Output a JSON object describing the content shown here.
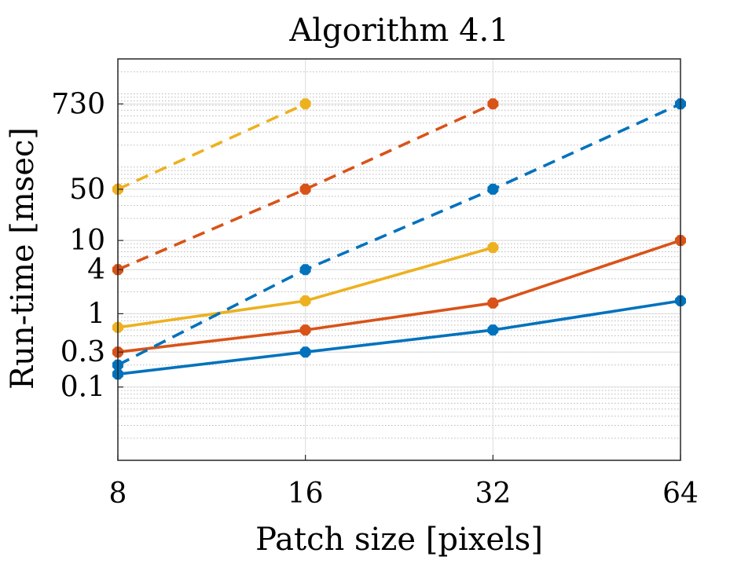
{
  "chart_data": {
    "type": "line",
    "title": "Algorithm 4.1",
    "xlabel": "Patch size [pixels]",
    "ylabel": "Run-time [msec]",
    "x": [
      8,
      16,
      32,
      64
    ],
    "x_scale": "log2",
    "y_scale": "log",
    "xlim": [
      8,
      64
    ],
    "ylim": [
      0.01,
      3000
    ],
    "xticks": [
      8,
      16,
      32,
      64
    ],
    "xtick_labels": [
      "8",
      "16",
      "32",
      "64"
    ],
    "yticks": [
      0.1,
      0.3,
      1,
      4,
      10,
      50,
      730
    ],
    "ytick_labels": [
      "0.1",
      "0.3",
      "1",
      "4",
      "10",
      "50",
      "730"
    ],
    "grid": true,
    "minor_grid_y": true,
    "series": [
      {
        "color": "#0072BD",
        "linestyle": "solid",
        "values": [
          0.15,
          0.3,
          0.6,
          1.5
        ]
      },
      {
        "color": "#D95319",
        "linestyle": "solid",
        "values": [
          0.3,
          0.6,
          1.4,
          10
        ]
      },
      {
        "color": "#EDB120",
        "linestyle": "solid",
        "values": [
          0.65,
          1.5,
          8,
          null
        ]
      },
      {
        "color": "#0072BD",
        "linestyle": "dashed",
        "values": [
          0.2,
          4,
          50,
          730
        ]
      },
      {
        "color": "#D95319",
        "linestyle": "dashed",
        "values": [
          4,
          50,
          730,
          null
        ]
      },
      {
        "color": "#EDB120",
        "linestyle": "dashed",
        "values": [
          50,
          730,
          null,
          null
        ]
      }
    ]
  }
}
